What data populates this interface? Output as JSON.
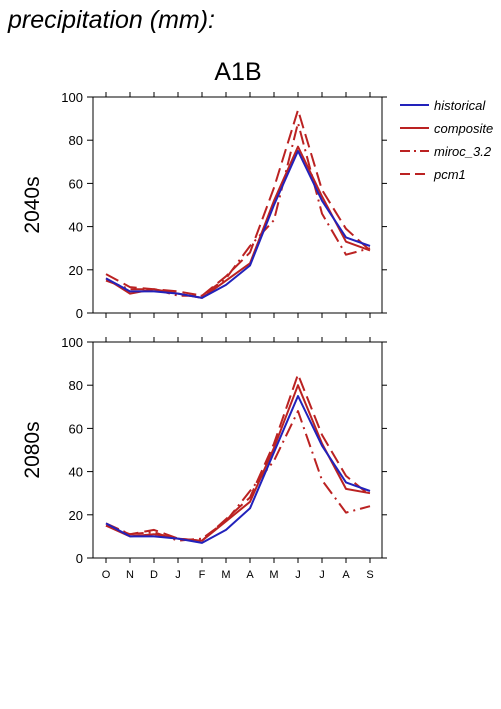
{
  "page": {
    "title": "precipitation (mm):"
  },
  "chart_data": {
    "type": "line",
    "title": "A1B",
    "categories": [
      "O",
      "N",
      "D",
      "J",
      "F",
      "M",
      "A",
      "M",
      "J",
      "J",
      "A",
      "S"
    ],
    "ylim": [
      0,
      100
    ],
    "yticks": [
      0,
      20,
      40,
      60,
      80,
      100
    ],
    "grid": false,
    "legend_position": "right",
    "legend": [
      {
        "name": "historical",
        "color": "#2222bb",
        "dash": "solid"
      },
      {
        "name": "composite",
        "color": "#bb2222",
        "dash": "solid"
      },
      {
        "name": "miroc_3.2",
        "color": "#bb2222",
        "dash": "dashdot"
      },
      {
        "name": "pcm1",
        "color": "#bb2222",
        "dash": "dashed"
      }
    ],
    "panels": [
      {
        "label": "2040s",
        "series": [
          {
            "name": "historical",
            "values": [
              16,
              10,
              10,
              9,
              7,
              13,
              22,
              50,
              75,
              52,
              35,
              31
            ]
          },
          {
            "name": "composite",
            "values": [
              16,
              9,
              11,
              9,
              7,
              15,
              23,
              52,
              77,
              54,
              33,
              29
            ]
          },
          {
            "name": "miroc_3.2",
            "values": [
              15,
              11,
              11,
              8,
              8,
              16,
              31,
              43,
              88,
              46,
              27,
              30
            ]
          },
          {
            "name": "pcm1",
            "values": [
              18,
              12,
              11,
              10,
              8,
              17,
              28,
              58,
              94,
              57,
              39,
              29
            ]
          }
        ]
      },
      {
        "label": "2080s",
        "series": [
          {
            "name": "historical",
            "values": [
              16,
              10,
              10,
              9,
              7,
              13,
              23,
              49,
              75,
              52,
              35,
              31
            ]
          },
          {
            "name": "composite",
            "values": [
              15,
              10,
              11,
              9,
              8,
              17,
              26,
              51,
              80,
              53,
              32,
              30
            ]
          },
          {
            "name": "miroc_3.2",
            "values": [
              16,
              11,
              12,
              8,
              9,
              17,
              31,
              45,
              68,
              36,
              21,
              24
            ]
          },
          {
            "name": "pcm1",
            "values": [
              15,
              11,
              13,
              9,
              8,
              18,
              28,
              53,
              85,
              57,
              38,
              29
            ]
          }
        ]
      }
    ]
  }
}
